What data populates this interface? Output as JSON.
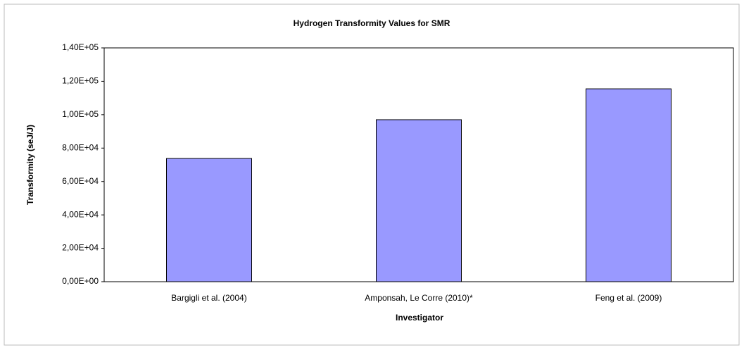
{
  "chart_data": {
    "type": "bar",
    "title": "Hydrogen Transformity Values for SMR",
    "xlabel": "Investigator",
    "ylabel": "Transformity (seJ/J)",
    "categories": [
      "Bargigli et al. (2004)",
      "Amponsah, Le Corre (2010)*",
      "Feng et al. (2009)"
    ],
    "values": [
      73800,
      97000,
      115500
    ],
    "color": "#9999ff",
    "ylim": [
      0,
      140000
    ],
    "yticks": [
      {
        "value": 0,
        "label": "0,00E+00"
      },
      {
        "value": 20000,
        "label": "2,00E+04"
      },
      {
        "value": 40000,
        "label": "4,00E+04"
      },
      {
        "value": 60000,
        "label": "6,00E+04"
      },
      {
        "value": 80000,
        "label": "8,00E+04"
      },
      {
        "value": 100000,
        "label": "1,00E+05"
      },
      {
        "value": 120000,
        "label": "1,20E+05"
      },
      {
        "value": 140000,
        "label": "1,40E+05"
      }
    ],
    "grid": false
  }
}
